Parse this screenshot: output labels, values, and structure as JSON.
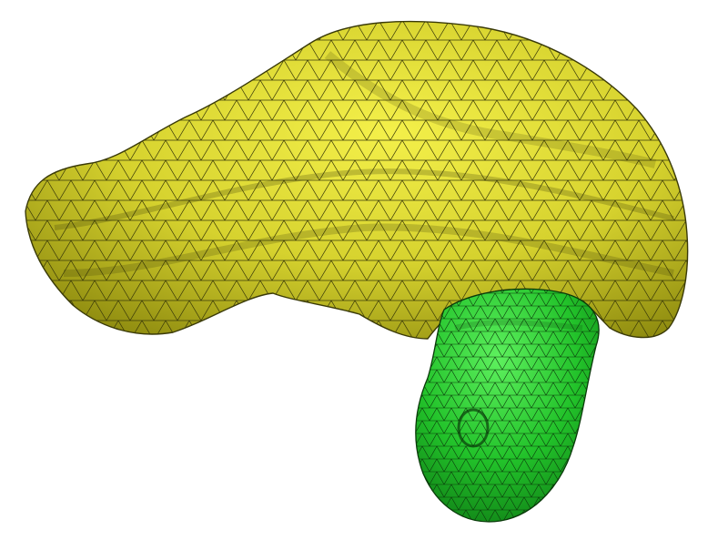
{
  "scene": {
    "background_color": "#ffffff"
  },
  "meshes": [
    {
      "id": "yellow-mesh",
      "icon": "organ-mesh",
      "fill_light": "#f4f04a",
      "fill_base": "#d6d22e",
      "fill_dark": "#8f8c10",
      "edge_color": "#3a3a08"
    },
    {
      "id": "green-mesh",
      "icon": "organ-mesh",
      "fill_light": "#5ef05e",
      "fill_base": "#22c22a",
      "fill_dark": "#0e7a14",
      "edge_color": "#0a3a0a"
    }
  ]
}
